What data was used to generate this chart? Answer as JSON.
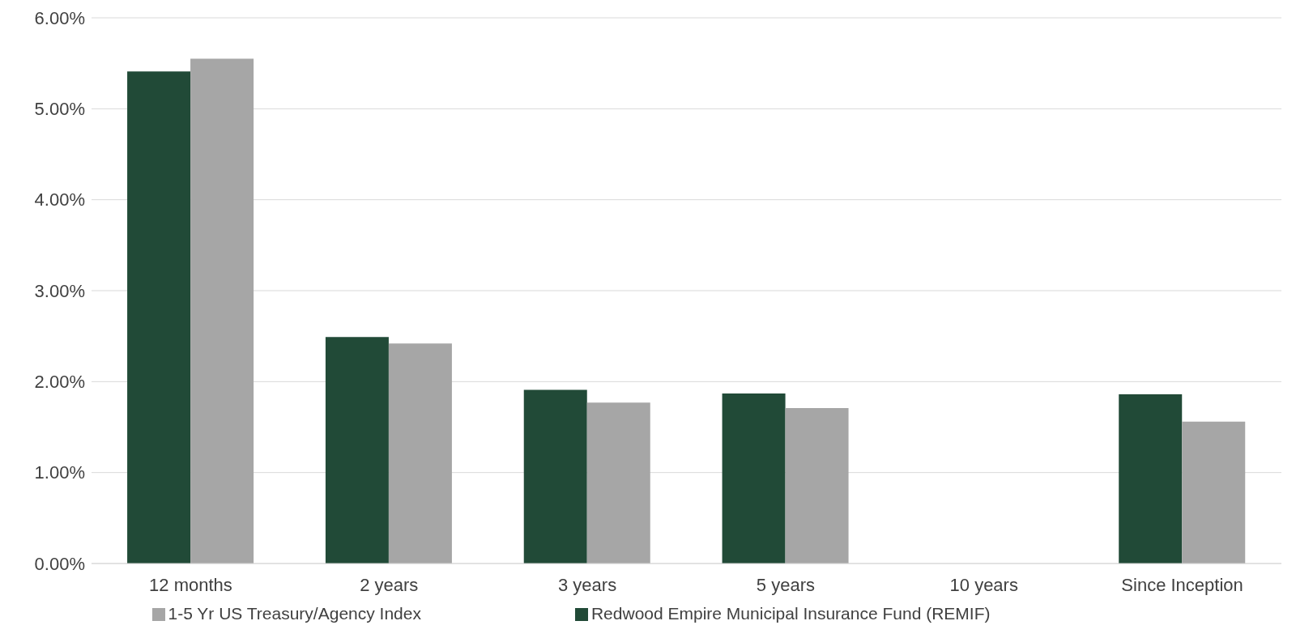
{
  "chart_data": {
    "type": "bar",
    "categories": [
      "12 months",
      "2 years",
      "3 years",
      "5 years",
      "10 years",
      "Since Inception"
    ],
    "series": [
      {
        "name": "Redwood Empire Municipal Insurance Fund (REMIF)",
        "color": "#214a37",
        "values": [
          5.41,
          2.49,
          1.91,
          1.87,
          null,
          1.86
        ]
      },
      {
        "name": "1-5 Yr US Treasury/Agency Index",
        "color": "#a6a6a6",
        "values": [
          5.55,
          2.42,
          1.77,
          1.71,
          null,
          1.56
        ]
      }
    ],
    "ylim": [
      0,
      6
    ],
    "yticks": [
      {
        "value": 0,
        "label": "0.00%"
      },
      {
        "value": 1,
        "label": "1.00%"
      },
      {
        "value": 2,
        "label": "2.00%"
      },
      {
        "value": 3,
        "label": "3.00%"
      },
      {
        "value": 4,
        "label": "4.00%"
      },
      {
        "value": 5,
        "label": "5.00%"
      },
      {
        "value": 6,
        "label": "6.00%"
      }
    ],
    "grid": "y",
    "legend": "bottom"
  }
}
